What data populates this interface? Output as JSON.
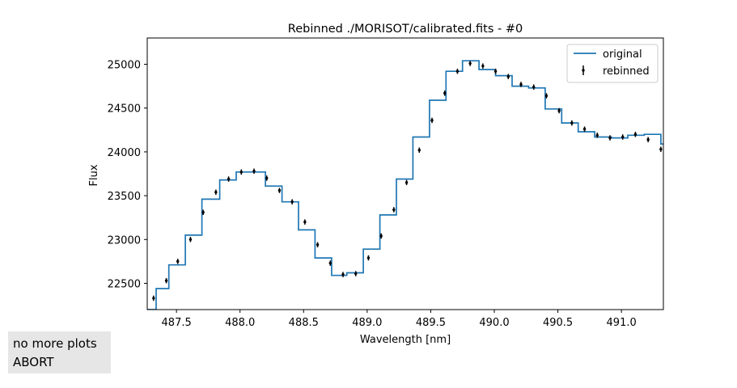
{
  "chart_data": {
    "type": "line",
    "title": "Rebinned ./MORISOT/calibrated.fits - #0",
    "xlabel": "Wavelength [nm]",
    "ylabel": "Flux",
    "xlim": [
      487.27,
      491.33
    ],
    "ylim": [
      22200,
      25300
    ],
    "xticks": [
      487.5,
      488.0,
      488.5,
      489.0,
      489.5,
      490.0,
      490.5,
      491.0
    ],
    "xtick_labels": [
      "487.5",
      "488.0",
      "488.5",
      "489.0",
      "489.5",
      "490.0",
      "490.5",
      "491.0"
    ],
    "yticks": [
      22500,
      23000,
      23500,
      24000,
      24500,
      25000
    ],
    "ytick_labels": [
      "22500",
      "23000",
      "23500",
      "24000",
      "24500",
      "25000"
    ],
    "grid": false,
    "legend_position": "top-right",
    "series": [
      {
        "name": "original",
        "style": "step",
        "color": "#1f77b4",
        "x": [
          487.24,
          487.34,
          487.44,
          487.57,
          487.7,
          487.84,
          487.97,
          488.1,
          488.2,
          488.33,
          488.46,
          488.59,
          488.72,
          488.84,
          488.97,
          489.1,
          489.23,
          489.36,
          489.49,
          489.62,
          489.75,
          489.88,
          490.01,
          490.14,
          490.27,
          490.4,
          490.53,
          490.66,
          490.79,
          490.92,
          491.05,
          491.18,
          491.31,
          491.4
        ],
        "y": [
          22200,
          22440,
          22710,
          23050,
          23460,
          23680,
          23770,
          23770,
          23610,
          23430,
          23110,
          22790,
          22590,
          22620,
          22890,
          23280,
          23690,
          24170,
          24590,
          24920,
          25040,
          24940,
          24870,
          24750,
          24730,
          24490,
          24330,
          24230,
          24170,
          24160,
          24190,
          24200,
          24090,
          24090
        ]
      },
      {
        "name": "rebinned",
        "style": "errorbar",
        "color": "#000000",
        "x": [
          487.32,
          487.42,
          487.51,
          487.61,
          487.71,
          487.81,
          487.91,
          488.01,
          488.11,
          488.21,
          488.31,
          488.41,
          488.51,
          488.61,
          488.71,
          488.81,
          488.91,
          489.01,
          489.11,
          489.21,
          489.31,
          489.41,
          489.51,
          489.61,
          489.71,
          489.81,
          489.91,
          490.01,
          490.11,
          490.21,
          490.31,
          490.41,
          490.51,
          490.61,
          490.71,
          490.81,
          490.91,
          491.01,
          491.11,
          491.21,
          491.31
        ],
        "y": [
          22330,
          22530,
          22750,
          23000,
          23310,
          23540,
          23690,
          23770,
          23780,
          23700,
          23560,
          23430,
          23200,
          22940,
          22730,
          22600,
          22610,
          22790,
          23040,
          23340,
          23650,
          24020,
          24360,
          24670,
          24920,
          25010,
          24980,
          24920,
          24860,
          24770,
          24740,
          24640,
          24470,
          24330,
          24260,
          24190,
          24160,
          24170,
          24200,
          24140,
          24030
        ],
        "yerr": [
          30,
          30,
          30,
          30,
          30,
          30,
          30,
          30,
          30,
          30,
          30,
          30,
          30,
          30,
          30,
          30,
          30,
          30,
          30,
          30,
          30,
          30,
          30,
          30,
          30,
          30,
          30,
          30,
          30,
          30,
          30,
          30,
          30,
          30,
          30,
          30,
          30,
          30,
          30,
          30,
          30
        ]
      }
    ]
  },
  "controls": {
    "no_more_plots_label": "no more plots",
    "abort_label": "ABORT"
  }
}
